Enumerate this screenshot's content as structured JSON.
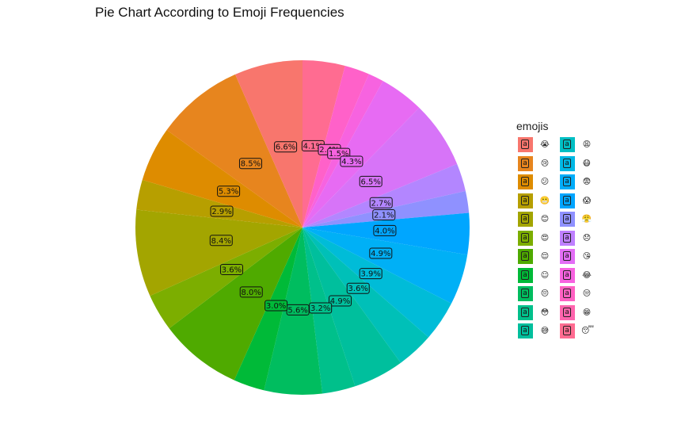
{
  "chart_data": {
    "type": "pie",
    "title": "Pie Chart According to Emoji Frequencies",
    "legend_title": "emojis",
    "legend_position": "right",
    "direction": "clockwise-from-top",
    "slices": [
      {
        "label": "4.1%",
        "value": 4.1,
        "color": "#FF6C91"
      },
      {
        "label": "2.4%",
        "value": 2.4,
        "color": "#FF61C9"
      },
      {
        "label": "1.5%",
        "value": 1.5,
        "color": "#F763E0"
      },
      {
        "label": "4.3%",
        "value": 4.3,
        "color": "#E76BF3"
      },
      {
        "label": "6.5%",
        "value": 6.5,
        "color": "#D774F8"
      },
      {
        "label": "2.7%",
        "value": 2.7,
        "color": "#B386FF"
      },
      {
        "label": "2.1%",
        "value": 2.1,
        "color": "#8F91FF"
      },
      {
        "label": "4.0%",
        "value": 4.0,
        "color": "#00A6FF"
      },
      {
        "label": "4.9%",
        "value": 4.9,
        "color": "#00B0F6"
      },
      {
        "label": "3.9%",
        "value": 3.9,
        "color": "#00BCD8"
      },
      {
        "label": "3.6%",
        "value": 3.6,
        "color": "#00C0B8"
      },
      {
        "label": "4.9%",
        "value": 4.9,
        "color": "#00BF9D"
      },
      {
        "label": "3.2%",
        "value": 3.2,
        "color": "#00C08B"
      },
      {
        "label": "5.6%",
        "value": 5.6,
        "color": "#00BD5F"
      },
      {
        "label": "3.0%",
        "value": 3.0,
        "color": "#00BA38"
      },
      {
        "label": "8.0%",
        "value": 8.0,
        "color": "#4FAA00"
      },
      {
        "label": "3.6%",
        "value": 3.6,
        "color": "#7CAE00"
      },
      {
        "label": "8.4%",
        "value": 8.4,
        "color": "#A3A500"
      },
      {
        "label": "2.9%",
        "value": 2.9,
        "color": "#B79F00"
      },
      {
        "label": "5.3%",
        "value": 5.3,
        "color": "#DE8C00"
      },
      {
        "label": "8.5%",
        "value": 8.5,
        "color": "#E7851E"
      },
      {
        "label": "6.6%",
        "value": 6.6,
        "color": "#F8766D"
      }
    ],
    "legend": [
      {
        "color": "#F8766D",
        "symbol": "😭",
        "icon": "crying-face-icon"
      },
      {
        "color": "#E7851E",
        "symbol": "😢",
        "icon": "sad-face-icon"
      },
      {
        "color": "#DE8C00",
        "symbol": "😕",
        "icon": "confused-face-icon"
      },
      {
        "color": "#B79F00",
        "symbol": "😬",
        "icon": "grimacing-face-icon"
      },
      {
        "color": "#A3A500",
        "symbol": "😊",
        "icon": "smiling-face-icon"
      },
      {
        "color": "#7CAE00",
        "symbol": "😍",
        "icon": "heart-eyes-face-icon"
      },
      {
        "color": "#4FAA00",
        "symbol": "😌",
        "icon": "relieved-face-icon"
      },
      {
        "color": "#00BA38",
        "symbol": "☺",
        "icon": "smile-face-icon"
      },
      {
        "color": "#00BD5F",
        "symbol": "😔",
        "icon": "pensive-face-icon"
      },
      {
        "color": "#00C08B",
        "symbol": "😳",
        "icon": "flushed-face-icon"
      },
      {
        "color": "#00BF9D",
        "symbol": "😅",
        "icon": "sweat-smile-face-icon"
      },
      {
        "color": "#00BFC4",
        "symbol": "😩",
        "icon": "weary-face-icon"
      },
      {
        "color": "#00B8E5",
        "symbol": "😷",
        "icon": "mask-face-icon"
      },
      {
        "color": "#00ADFA",
        "symbol": "😨",
        "icon": "fearful-face-icon"
      },
      {
        "color": "#00A5FF",
        "symbol": "😱",
        "icon": "screaming-face-icon"
      },
      {
        "color": "#8F91FF",
        "symbol": "😤",
        "icon": "triumph-face-icon"
      },
      {
        "color": "#BF80FF",
        "symbol": "😞",
        "icon": "disappointed-face-icon"
      },
      {
        "color": "#E36EF6",
        "symbol": "😘",
        "icon": "kissing-face-icon"
      },
      {
        "color": "#F763E0",
        "symbol": "😂",
        "icon": "tears-of-joy-face-icon"
      },
      {
        "color": "#FF61C3",
        "symbol": "😒",
        "icon": "unamused-face-icon"
      },
      {
        "color": "#FF65AE",
        "symbol": "😁",
        "icon": "grinning-face-icon"
      },
      {
        "color": "#FF6C91",
        "symbol": "😴",
        "icon": "sleeping-face-icon"
      }
    ]
  }
}
